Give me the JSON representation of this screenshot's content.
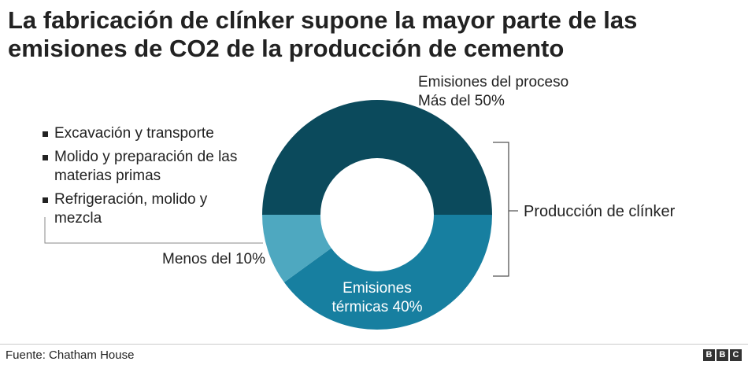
{
  "title_lines": [
    "La fabricación de clínker supone la mayor parte de las",
    "emisiones de CO2 de la producción de cemento"
  ],
  "chart_data": {
    "type": "pie",
    "donut": true,
    "slices": [
      {
        "key": "process",
        "value": 50,
        "color": "#0b4a5c"
      },
      {
        "key": "thermal",
        "value": 40,
        "color": "#177fa0"
      },
      {
        "key": "other",
        "value": 10,
        "color": "#4ea8c0"
      }
    ],
    "slice_labels": {
      "process": [
        "Emisiones del proceso",
        "Más del 50%"
      ],
      "thermal": [
        "Emisiones",
        "térmicas 40%"
      ],
      "other": [
        "Menos del 10%"
      ]
    },
    "bracket_label": "Producción de clínker",
    "legend_items": [
      [
        "Excavación y transporte"
      ],
      [
        "Molido y preparación de las",
        "materias primas"
      ],
      [
        "Refrigeración, molido y",
        "mezcla"
      ]
    ]
  },
  "source": "Fuente: Chatham House",
  "logo_letters": [
    "B",
    "B",
    "C"
  ],
  "colors": {
    "text": "#222222",
    "bracket": "#555555",
    "rule": "#cccccc"
  }
}
